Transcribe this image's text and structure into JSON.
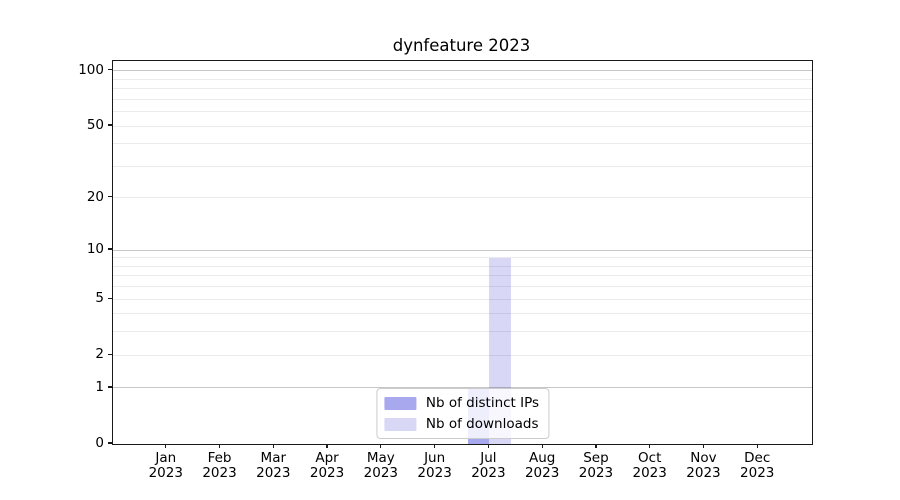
{
  "chart_data": {
    "type": "bar",
    "title": "dynfeature 2023",
    "x_tick_labels": [
      [
        "Jan",
        "2023"
      ],
      [
        "Feb",
        "2023"
      ],
      [
        "Mar",
        "2023"
      ],
      [
        "Apr",
        "2023"
      ],
      [
        "May",
        "2023"
      ],
      [
        "Jun",
        "2023"
      ],
      [
        "Jul",
        "2023"
      ],
      [
        "Aug",
        "2023"
      ],
      [
        "Sep",
        "2023"
      ],
      [
        "Oct",
        "2023"
      ],
      [
        "Nov",
        "2023"
      ],
      [
        "Dec",
        "2023"
      ]
    ],
    "series": [
      {
        "name": "Nb of distinct IPs",
        "color": "#a8a8ee",
        "values": [
          0,
          0,
          0,
          0,
          0,
          0,
          1,
          0,
          0,
          0,
          0,
          0
        ]
      },
      {
        "name": "Nb of downloads",
        "color": "#d8d8f6",
        "values": [
          0,
          0,
          0,
          0,
          0,
          0,
          9,
          0,
          0,
          0,
          0,
          0
        ]
      }
    ],
    "y_scale": "log1p",
    "ylim": [
      0,
      113
    ],
    "y_ticks": [
      0,
      1,
      2,
      5,
      10,
      20,
      50,
      100
    ],
    "y_major_gridlines": [
      1,
      10,
      100
    ],
    "y_minor_gridlines": [
      2,
      3,
      4,
      5,
      6,
      7,
      8,
      9,
      20,
      30,
      40,
      50,
      60,
      70,
      80,
      90
    ],
    "grid": true,
    "legend_position": "lower center",
    "colors": {
      "major_grid": "#c7c7c7",
      "minor_grid": "#ececec",
      "axis": "#1a1a1a",
      "legend_border": "#cccccc"
    }
  }
}
